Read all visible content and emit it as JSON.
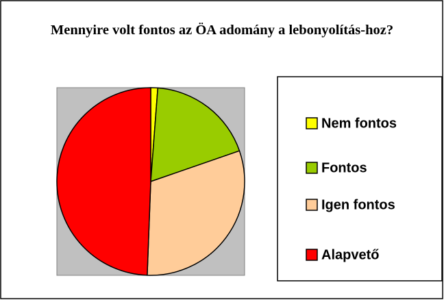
{
  "chart_data": {
    "type": "pie",
    "title": "Mennyire volt fontos az ÖA adomány a lebonyolítás-hoz?",
    "categories": [
      "Nem fontos",
      "Fontos",
      "Igen fontos",
      "Alapvető"
    ],
    "values": [
      1.2,
      18.5,
      30.9,
      49.4
    ],
    "colors": [
      "#ffff00",
      "#99cc00",
      "#ffcc99",
      "#ff0000"
    ],
    "legend": "right"
  }
}
